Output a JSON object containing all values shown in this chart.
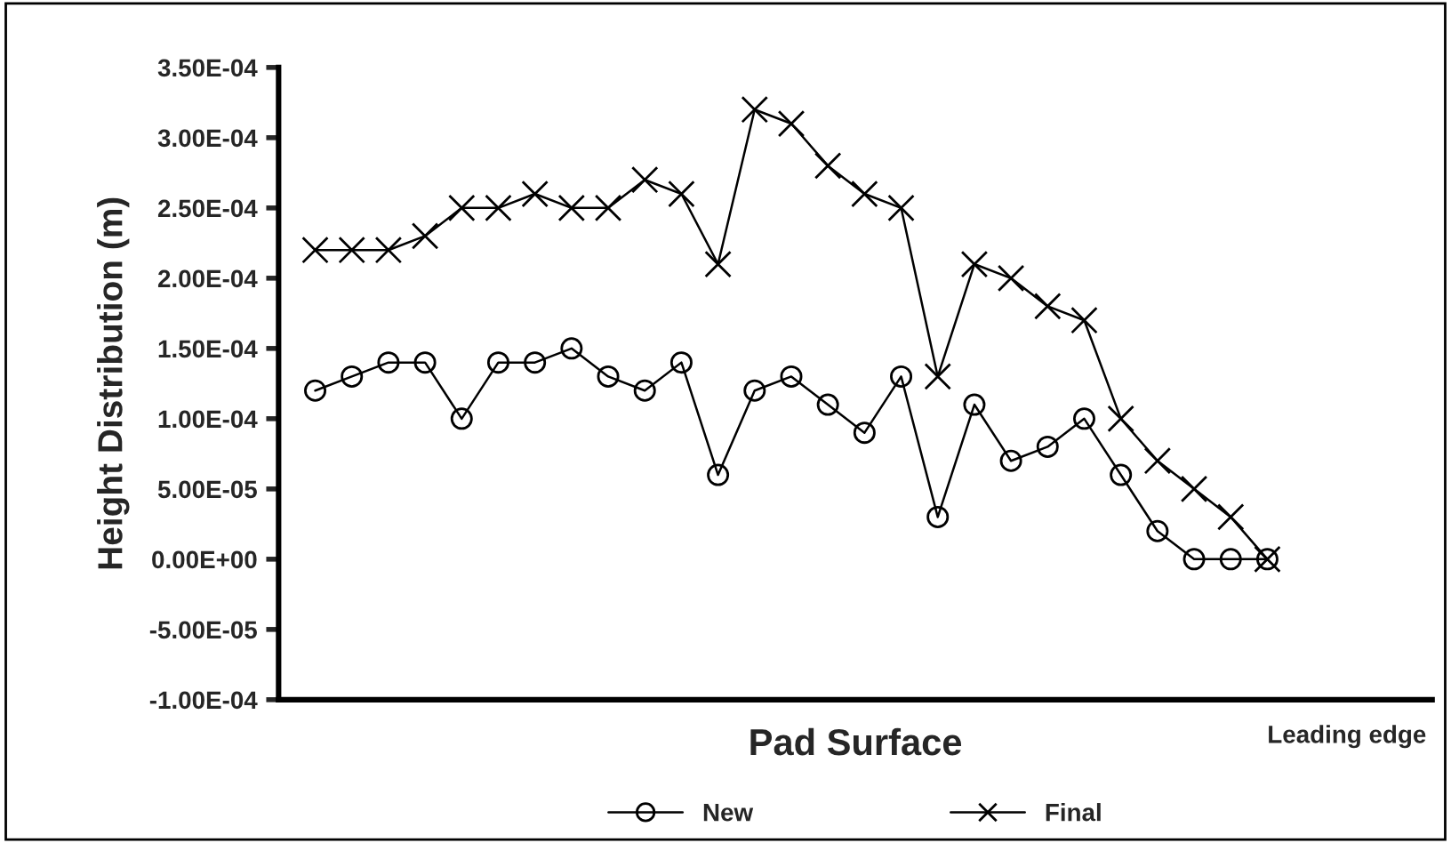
{
  "chart_data": {
    "type": "line",
    "xlabel": "Pad Surface",
    "ylabel": "Height Distribution (m)",
    "categories": [
      null,
      null,
      null,
      null,
      null,
      null,
      null,
      null,
      null,
      null,
      null,
      null,
      null,
      null,
      null,
      null,
      null,
      null,
      null,
      null,
      null,
      null,
      null,
      null,
      null,
      null,
      null
    ],
    "series": [
      {
        "name": "New",
        "color": "#000000",
        "marker": "circle",
        "values": [
          0.00012,
          0.00013,
          0.00014,
          0.00014,
          0.0001,
          0.00014,
          0.00014,
          0.00015,
          0.00013,
          0.00012,
          0.00014,
          6e-05,
          0.00012,
          0.00013,
          0.00011,
          9e-05,
          0.00013,
          3e-05,
          0.00011,
          7e-05,
          8e-05,
          0.0001,
          6e-05,
          2e-05,
          0,
          0,
          0
        ]
      },
      {
        "name": "Final",
        "color": "#000000",
        "marker": "cross",
        "values": [
          0.00022,
          0.00022,
          0.00022,
          0.00023,
          0.00025,
          0.00025,
          0.00026,
          0.00025,
          0.00025,
          0.00027,
          0.00026,
          0.00021,
          0.00032,
          0.00031,
          0.00028,
          0.00026,
          0.00025,
          0.00013,
          0.00021,
          0.0002,
          0.00018,
          0.00017,
          0.0001,
          7e-05,
          5e-05,
          3e-05,
          0
        ]
      }
    ],
    "ylim": [
      -0.0001,
      0.00035
    ],
    "yticks": [
      {
        "value": -0.0001,
        "label": "-1.00E-04"
      },
      {
        "value": -5e-05,
        "label": "-5.00E-05"
      },
      {
        "value": 0,
        "label": "0.00E+00"
      },
      {
        "value": 5e-05,
        "label": "5.00E-05"
      },
      {
        "value": 0.0001,
        "label": "1.00E-04"
      },
      {
        "value": 0.00015,
        "label": "1.50E-04"
      },
      {
        "value": 0.0002,
        "label": "2.00E-04"
      },
      {
        "value": 0.00025,
        "label": "2.50E-04"
      },
      {
        "value": 0.0003,
        "label": "3.00E-04"
      },
      {
        "value": 0.00035,
        "label": "3.50E-04"
      }
    ],
    "annotations": [
      "Leading edge"
    ],
    "grid": false,
    "legend": "bottom",
    "line_style": "solid"
  }
}
